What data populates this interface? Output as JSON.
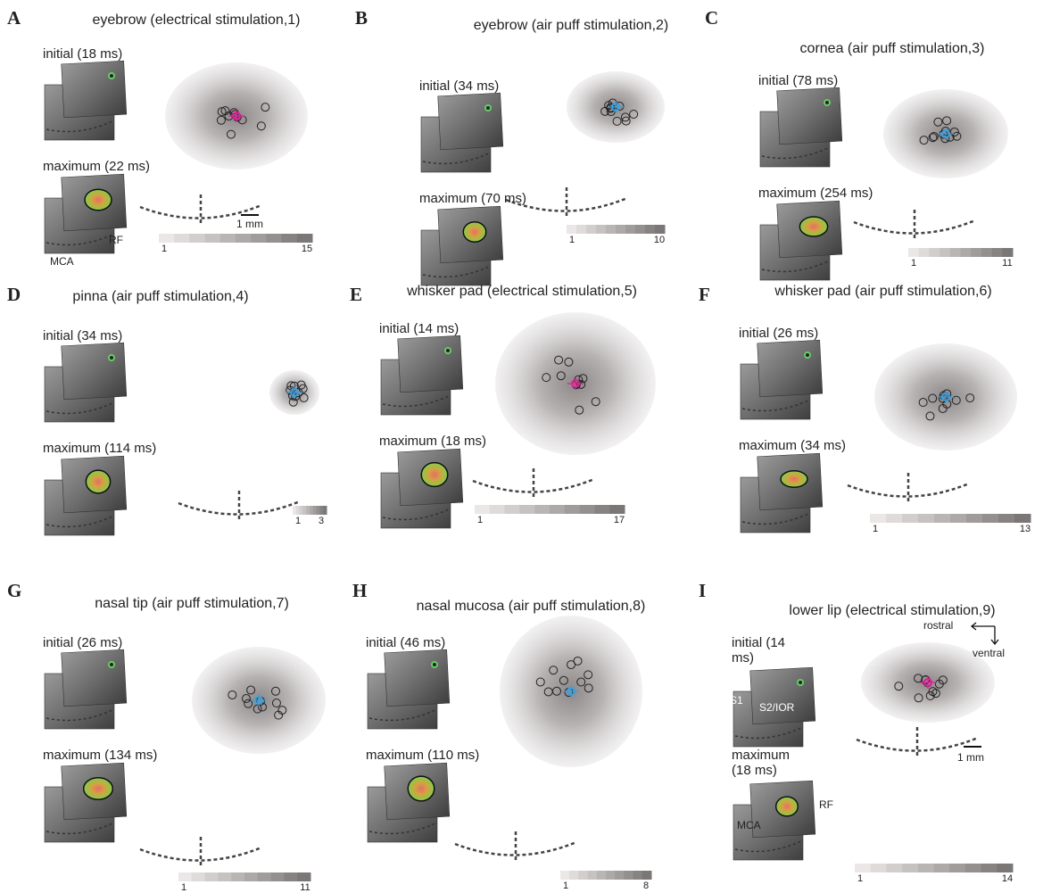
{
  "panels": [
    {
      "letter": "A",
      "title": "eyebrow (electrical stimulation,1)",
      "initial": "initial (18 ms)",
      "maximum": "maximum (22 ms)",
      "scale_min": "1",
      "scale_max": "15",
      "labels": [
        "RF",
        "MCA",
        "1 mm"
      ]
    },
    {
      "letter": "B",
      "title": "eyebrow (air puff stimulation,2)",
      "initial": "initial (34 ms)",
      "maximum": "maximum (70 ms)",
      "scale_min": "1",
      "scale_max": "10"
    },
    {
      "letter": "C",
      "title": "cornea (air puff stimulation,3)",
      "initial": "initial (78 ms)",
      "maximum": "maximum (254 ms)",
      "scale_min": "1",
      "scale_max": "11"
    },
    {
      "letter": "D",
      "title": "pinna (air puff stimulation,4)",
      "initial": "initial (34 ms)",
      "maximum": "maximum (114 ms)",
      "scale_min": "1",
      "scale_max": "3"
    },
    {
      "letter": "E",
      "title": "whisker pad (electrical stimulation,5)",
      "initial": "initial (14 ms)",
      "maximum": "maximum (18 ms)",
      "scale_min": "1",
      "scale_max": "17"
    },
    {
      "letter": "F",
      "title": "whisker pad (air puff stimulation,6)",
      "initial": "initial (26 ms)",
      "maximum": "maximum (34 ms)",
      "scale_min": "1",
      "scale_max": "13"
    },
    {
      "letter": "G",
      "title": "nasal tip (air puff stimulation,7)",
      "initial": "initial (26 ms)",
      "maximum": "maximum (134 ms)",
      "scale_min": "1",
      "scale_max": "11"
    },
    {
      "letter": "H",
      "title": "nasal mucosa (air puff stimulation,8)",
      "initial": "initial (46 ms)",
      "maximum": "maximum (110 ms)",
      "scale_min": "1",
      "scale_max": "8"
    },
    {
      "letter": "I",
      "title": "lower lip (electrical stimulation,9)",
      "initial": "initial (14 ms)",
      "maximum": "maximum (18 ms)",
      "scale_min": "1",
      "scale_max": "14",
      "labels": [
        "rostral",
        "ventral",
        "S1",
        "S2/IOR",
        "RF",
        "MCA",
        "1 mm"
      ]
    }
  ]
}
